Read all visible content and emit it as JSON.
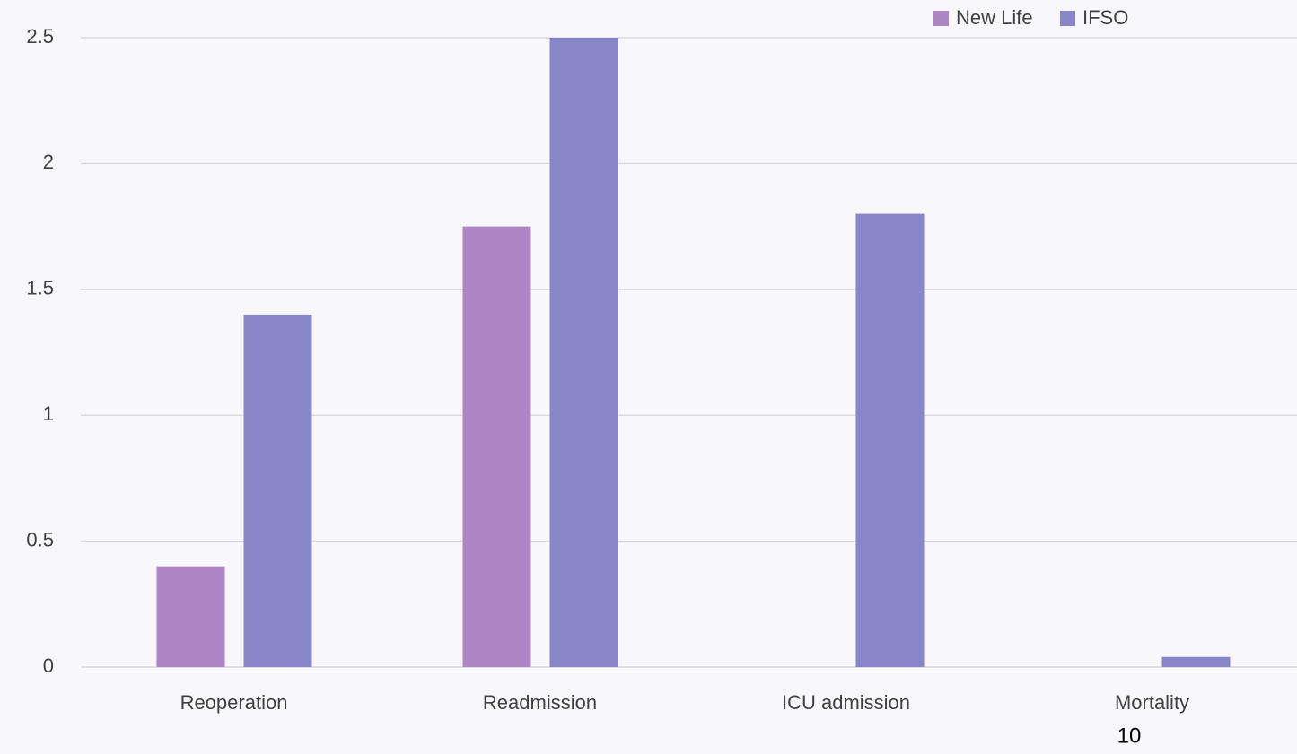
{
  "chart_data": {
    "type": "bar",
    "categories": [
      "Reoperation",
      "Readmission",
      "ICU admission",
      "Mortality"
    ],
    "series": [
      {
        "name": "New Life",
        "color": "#ae86c6",
        "values": [
          0.4,
          1.75,
          0,
          0
        ]
      },
      {
        "name": "IFSO",
        "color": "#8886c8",
        "values": [
          1.4,
          2.5,
          1.8,
          0.04
        ]
      }
    ],
    "ylim": [
      0,
      2.5
    ],
    "yticks": [
      0,
      0.5,
      1,
      1.5,
      2,
      2.5
    ],
    "grid": true,
    "legend": "top-right",
    "annotations": [
      "10"
    ]
  }
}
